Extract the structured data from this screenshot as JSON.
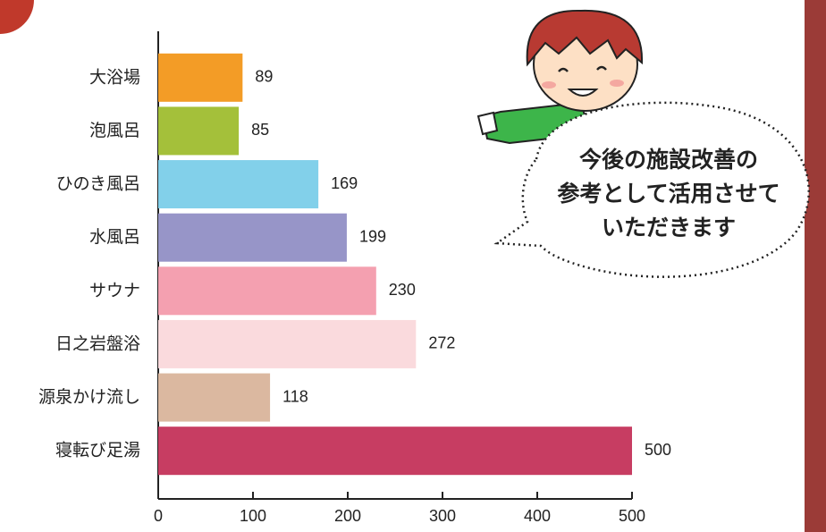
{
  "chart_data": {
    "type": "bar",
    "orientation": "horizontal",
    "categories": [
      "大浴場",
      "泡風呂",
      "ひのき風呂",
      "水風呂",
      "サウナ",
      "日之岩盤浴",
      "源泉かけ流し",
      "寝転び足湯"
    ],
    "values": [
      89,
      85,
      169,
      199,
      230,
      272,
      118,
      500
    ],
    "colors": [
      "#f39c26",
      "#a4c03a",
      "#82d0ea",
      "#9795c8",
      "#f4a0b0",
      "#fadadd",
      "#dbb8a0",
      "#c73d62"
    ],
    "xlim": [
      0,
      500
    ],
    "xticks": [
      0,
      100,
      200,
      300,
      400,
      500
    ],
    "annotation": [
      "今後の施設改善の",
      "参考として活用させて",
      "いただきます"
    ]
  }
}
